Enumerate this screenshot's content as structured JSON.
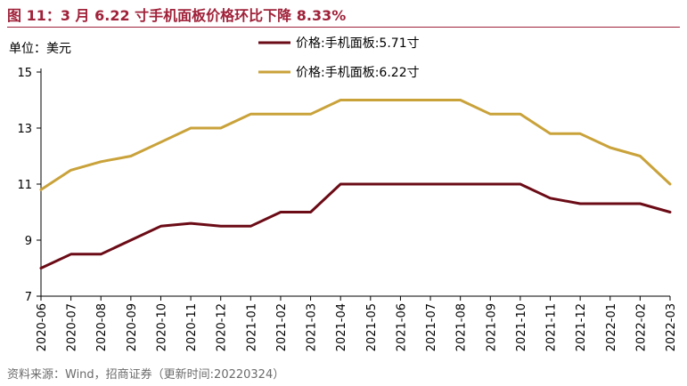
{
  "header": {
    "title": "图 11：3 月 6.22 寸手机面板价格环比下降 8.33%",
    "unit": "单位：美元"
  },
  "footer": {
    "source": "资料来源：Wind，招商证券（更新时间:20220324）"
  },
  "chart_data": {
    "type": "line",
    "categories": [
      "2020-06",
      "2020-07",
      "2020-08",
      "2020-09",
      "2020-10",
      "2020-11",
      "2020-12",
      "2021-01",
      "2021-02",
      "2021-03",
      "2021-04",
      "2021-05",
      "2021-06",
      "2021-07",
      "2021-08",
      "2021-09",
      "2021-10",
      "2021-11",
      "2021-12",
      "2022-01",
      "2022-02",
      "2022-03"
    ],
    "ylim": [
      7,
      15
    ],
    "yticks": [
      7,
      9,
      11,
      13,
      15
    ],
    "legend_position": "top-right",
    "series": [
      {
        "name": "价格:手机面板:5.71寸",
        "color": "#6b0b16",
        "values": [
          8.0,
          8.5,
          8.5,
          9.0,
          9.5,
          9.6,
          9.5,
          9.5,
          10.0,
          10.0,
          11.0,
          11.0,
          11.0,
          11.0,
          11.0,
          11.0,
          11.0,
          10.5,
          10.3,
          10.3,
          10.3,
          10.0
        ]
      },
      {
        "name": "价格:手机面板:6.22寸",
        "color": "#c9a23a",
        "values": [
          10.8,
          11.5,
          11.8,
          12.0,
          12.5,
          13.0,
          13.0,
          13.5,
          13.5,
          13.5,
          14.0,
          14.0,
          14.0,
          14.0,
          14.0,
          13.5,
          13.5,
          12.8,
          12.8,
          12.3,
          12.0,
          11.0
        ]
      }
    ]
  }
}
